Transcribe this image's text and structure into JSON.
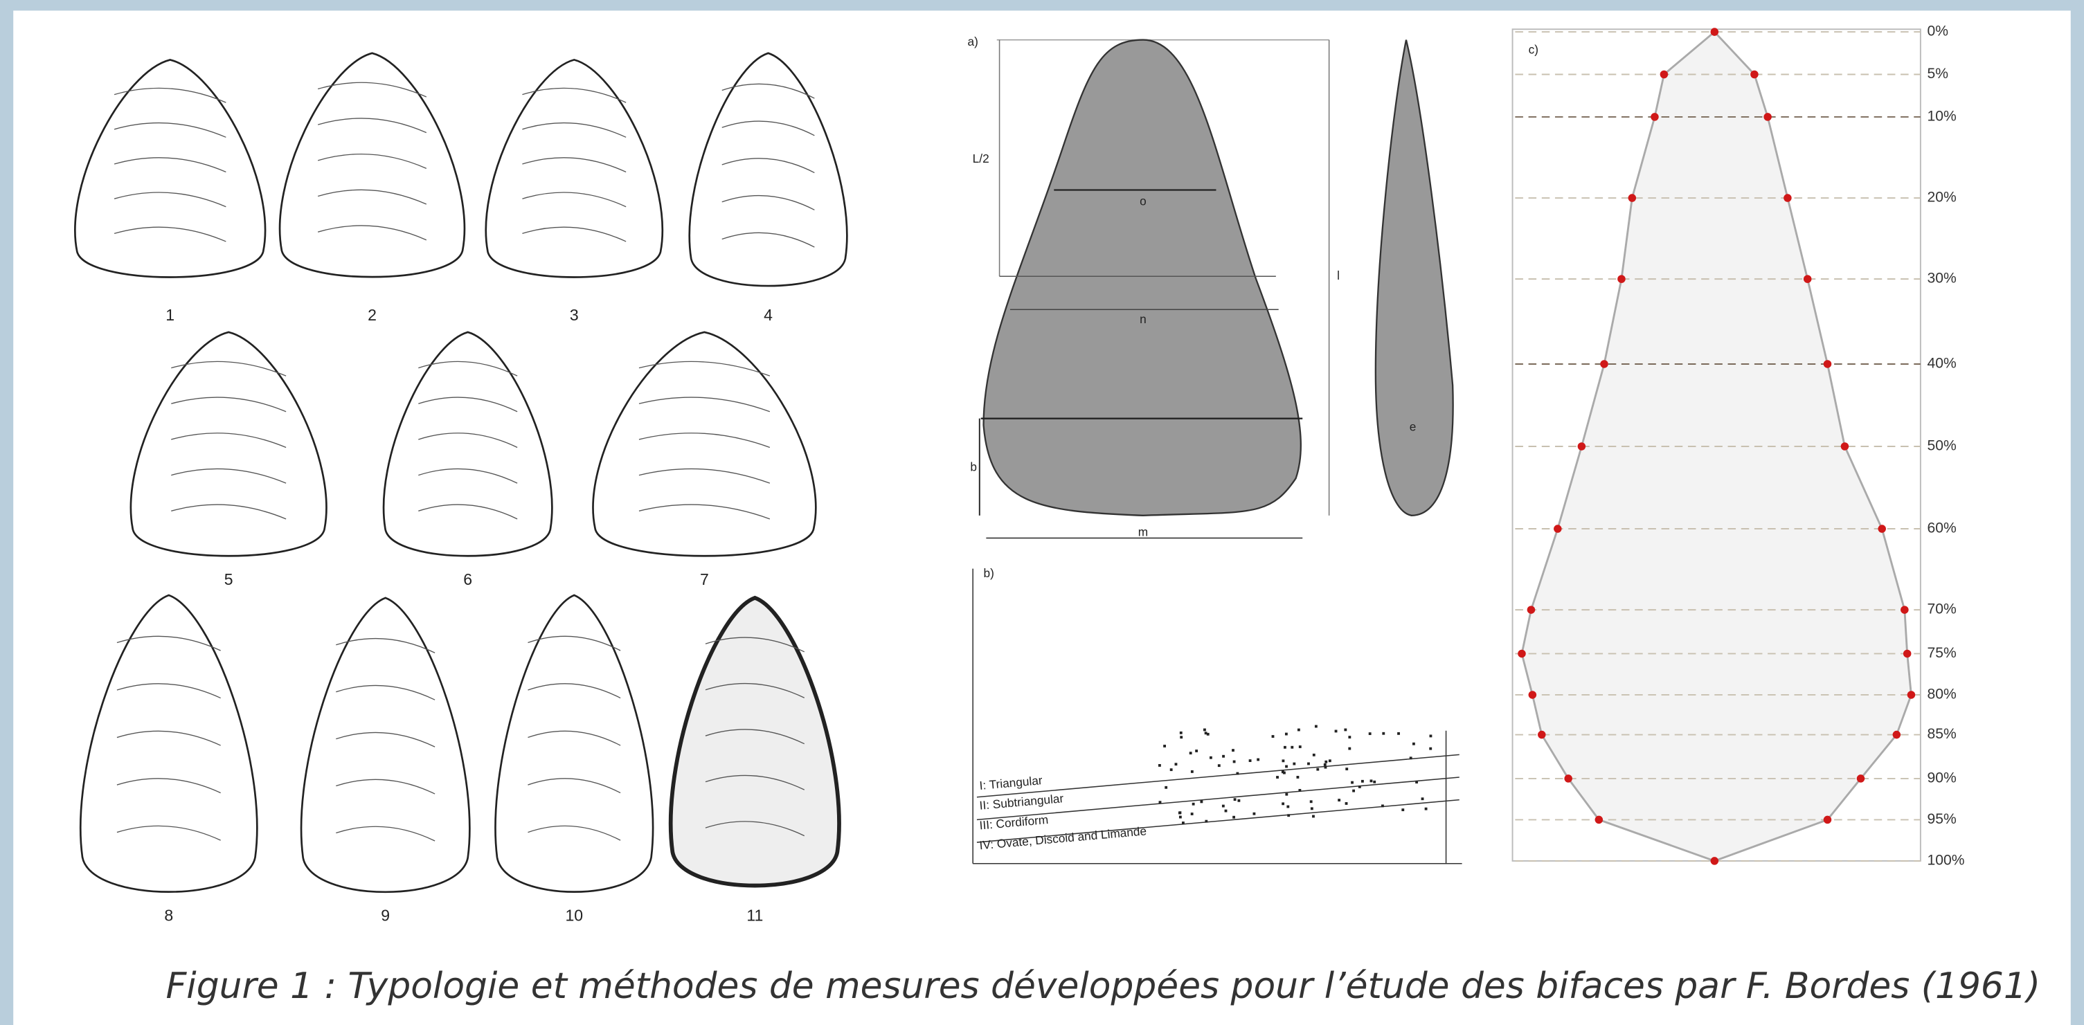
{
  "left_panel": {
    "labels": [
      "1",
      "2",
      "3",
      "4",
      "5",
      "6",
      "7",
      "8",
      "9",
      "10",
      "11"
    ]
  },
  "panel_a": {
    "label": "a)",
    "half_length": "L/2",
    "width_n": "n",
    "width_o": "o",
    "width_m": "m",
    "length_l": "l",
    "thickness_e": "e",
    "base_b": "b"
  },
  "panel_b": {
    "label": "b)",
    "legend": [
      "I: Triangular",
      "II: Subtriangular",
      "III: Cordiform",
      "IV: Ovate, Discoid and Limande"
    ]
  },
  "panel_c": {
    "label": "c)",
    "percent_labels": [
      "0%",
      "5%",
      "10%",
      "20%",
      "30%",
      "40%",
      "50%",
      "60%",
      "70%",
      "75%",
      "80%",
      "85%",
      "90%",
      "95%",
      "100%"
    ]
  },
  "caption": "Figure 1 : Typologie et méthodes de mesures développées pour l’étude des bifaces par F. Bordes (1961)"
}
